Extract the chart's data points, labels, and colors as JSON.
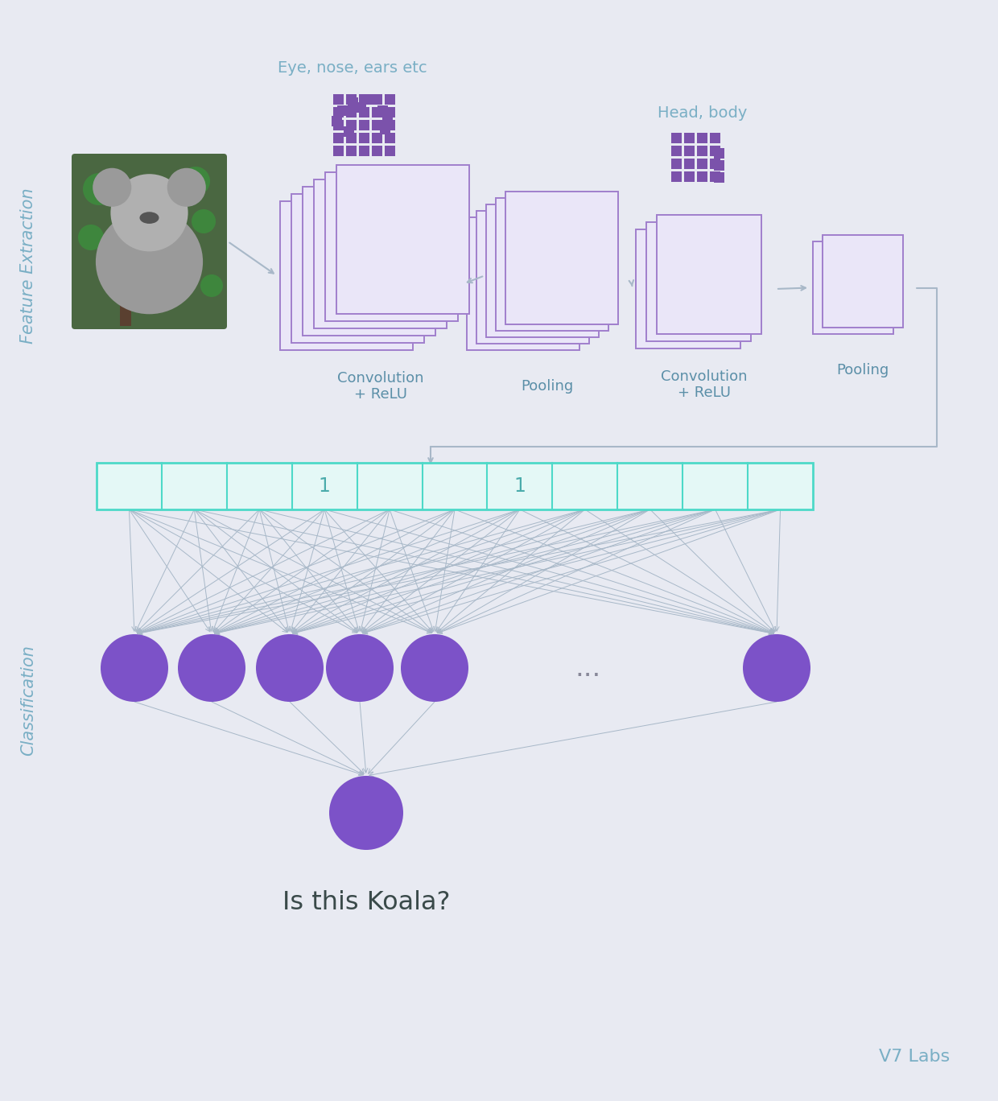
{
  "bg_color": "#e8eaf2",
  "feature_extraction_label": "Feature Extraction",
  "classification_label": "Classification",
  "eye_nose_label": "Eye, nose, ears etc",
  "head_body_label": "Head, body",
  "conv_relu1_label": "Convolution\n+ ReLU",
  "pooling1_label": "Pooling",
  "conv_relu2_label": "Convolution\n+ ReLU",
  "pooling2_label": "Pooling",
  "is_koala_label": "Is this Koala?",
  "v7labs_label": "V7 Labs",
  "purple_dark": "#7B52AB",
  "purple_fill": "#EAE6F8",
  "purple_stroke": "#A07FCC",
  "teal_stroke": "#4DD9C8",
  "teal_fill": "#E4F8F6",
  "label_color": "#7AAFC5",
  "text_color": "#5B8FA8",
  "node_color": "#7C52C8",
  "arrow_color": "#A8B8C8",
  "black_text": "#3A4A4A",
  "one_color": "#4AABAB"
}
